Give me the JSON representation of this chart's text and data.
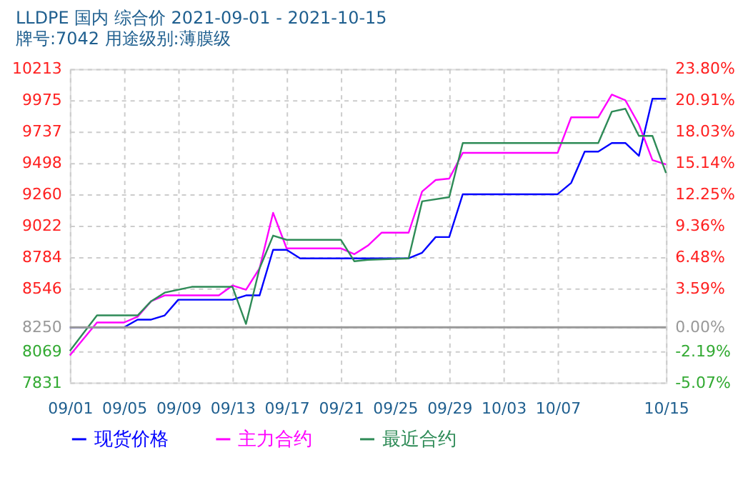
{
  "chart_data": {
    "type": "line",
    "title": "LLDPE 国内 综合价 2021-09-01 - 2021-10-15",
    "subtitle": "牌号:7042 用途级别:薄膜级",
    "series": [
      {
        "name": "现货价格",
        "color": "#0000ff",
        "x": [
          "2021-09-01",
          "2021-09-05",
          "2021-09-06",
          "2021-09-07",
          "2021-09-08",
          "2021-09-09",
          "2021-09-13",
          "2021-09-14",
          "2021-09-15",
          "2021-09-16",
          "2021-09-17",
          "2021-09-18",
          "2021-09-23",
          "2021-09-26",
          "2021-09-27",
          "2021-09-28",
          "2021-09-29",
          "2021-09-30",
          "2021-10-07",
          "2021-10-08",
          "2021-10-09",
          "2021-10-10",
          "2021-10-11",
          "2021-10-12",
          "2021-10-13",
          "2021-10-14",
          "2021-10-15"
        ],
        "values": [
          8250,
          8250,
          8309,
          8309,
          8341,
          8460,
          8460,
          8493,
          8493,
          8839,
          8839,
          8774,
          8774,
          8774,
          8817,
          8936,
          8936,
          9261,
          9261,
          9347,
          9585,
          9585,
          9650,
          9650,
          9553,
          9986,
          9986
        ]
      },
      {
        "name": "主力合约",
        "color": "#ff00ff",
        "x": [
          "2021-09-01",
          "2021-09-03",
          "2021-09-05",
          "2021-09-06",
          "2021-09-07",
          "2021-09-08",
          "2021-09-12",
          "2021-09-13",
          "2021-09-14",
          "2021-09-15",
          "2021-09-16",
          "2021-09-17",
          "2021-09-21",
          "2021-09-22",
          "2021-09-23",
          "2021-09-24",
          "2021-09-26",
          "2021-09-27",
          "2021-09-28",
          "2021-09-29",
          "2021-09-30",
          "2021-10-07",
          "2021-10-08",
          "2021-10-10",
          "2021-10-11",
          "2021-10-12",
          "2021-10-13",
          "2021-10-14",
          "2021-10-15"
        ],
        "values": [
          8038,
          8287,
          8287,
          8331,
          8449,
          8493,
          8493,
          8568,
          8536,
          8698,
          9120,
          8850,
          8850,
          8806,
          8871,
          8969,
          8969,
          9282,
          9369,
          9380,
          9575,
          9575,
          9845,
          9845,
          10018,
          9975,
          9791,
          9520,
          9488
        ]
      },
      {
        "name": "最近合约",
        "color": "#2e8b57",
        "x": [
          "2021-09-01",
          "2021-09-03",
          "2021-09-05",
          "2021-09-06",
          "2021-09-07",
          "2021-09-08",
          "2021-09-10",
          "2021-09-13",
          "2021-09-14",
          "2021-09-15",
          "2021-09-16",
          "2021-09-17",
          "2021-09-21",
          "2021-09-22",
          "2021-09-23",
          "2021-09-26",
          "2021-09-27",
          "2021-09-29",
          "2021-09-30",
          "2021-10-10",
          "2021-10-11",
          "2021-10-12",
          "2021-10-13",
          "2021-10-14",
          "2021-10-15"
        ],
        "values": [
          8071,
          8341,
          8341,
          8341,
          8449,
          8514,
          8558,
          8558,
          8276,
          8698,
          8947,
          8915,
          8915,
          8752,
          8763,
          8774,
          9207,
          9239,
          9650,
          9650,
          9888,
          9910,
          9704,
          9704,
          9423
        ]
      }
    ],
    "xlim": [
      "2021-09-01",
      "2021-10-15"
    ],
    "xticks": [
      {
        "value": "2021-09-01",
        "label": "09/01"
      },
      {
        "value": "2021-09-05",
        "label": "09/05"
      },
      {
        "value": "2021-09-09",
        "label": "09/09"
      },
      {
        "value": "2021-09-13",
        "label": "09/13"
      },
      {
        "value": "2021-09-17",
        "label": "09/17"
      },
      {
        "value": "2021-09-21",
        "label": "09/21"
      },
      {
        "value": "2021-09-25",
        "label": "09/25"
      },
      {
        "value": "2021-09-29",
        "label": "09/29"
      },
      {
        "value": "2021-10-03",
        "label": "10/03"
      },
      {
        "value": "2021-10-07",
        "label": "10/07"
      },
      {
        "value": "2021-10-15",
        "label": "10/15"
      }
    ],
    "ylim": [
      7831,
      10213
    ],
    "yticks": [
      7831,
      8069,
      8250,
      8546,
      8784,
      9022,
      9260,
      9498,
      9737,
      9975,
      10213
    ],
    "y2lim": [
      -5.07,
      23.8
    ],
    "y2ticks": [
      {
        "value": -5.07,
        "label": "-5.07%"
      },
      {
        "value": -2.19,
        "label": "-2.19%"
      },
      {
        "value": 0,
        "label": "0.00%"
      },
      {
        "value": 3.59,
        "label": "3.59%"
      },
      {
        "value": 6.48,
        "label": "6.48%"
      },
      {
        "value": 9.36,
        "label": "9.36%"
      },
      {
        "value": 12.25,
        "label": "12.25%"
      },
      {
        "value": 15.14,
        "label": "15.14%"
      },
      {
        "value": 18.03,
        "label": "18.03%"
      },
      {
        "value": 20.91,
        "label": "20.91%"
      },
      {
        "value": 23.8,
        "label": "23.80%"
      }
    ],
    "ref_lines": [
      {
        "axis": "y",
        "value": 8250,
        "color": "#999999"
      }
    ],
    "grid": true,
    "legend": "bottom",
    "marker": "none",
    "line_style": "solid"
  }
}
